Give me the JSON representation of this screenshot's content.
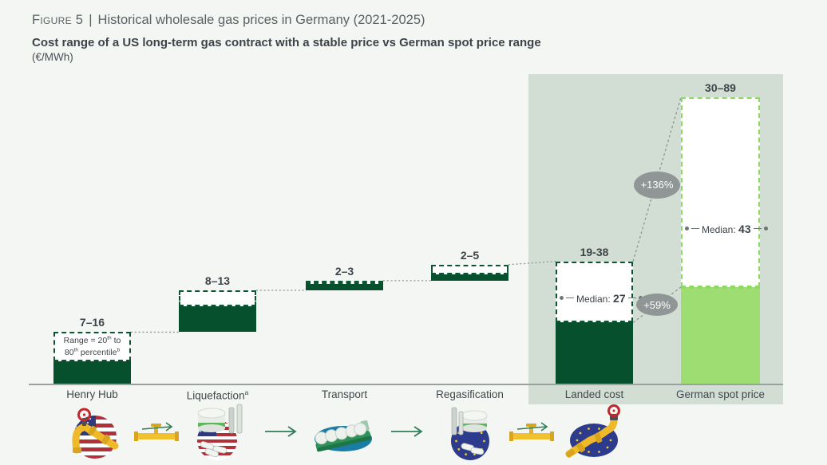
{
  "header": {
    "figure_label": "Figure 5",
    "separator": "|",
    "title": "Historical wholesale gas prices in Germany (2021-2025)",
    "subtitle": "Cost range of a US long-term gas contract with a stable price vs German spot price range",
    "units": "(€/MWh)"
  },
  "chart_data": {
    "type": "bar",
    "subtype": "floating-range-waterfall",
    "title": "Cost range of a US long-term gas contract with a stable price vs German spot price range",
    "unit": "€/MWh",
    "grid": false,
    "legend_position": "none",
    "categories": [
      "Henry Hub",
      "Liquefaction",
      "Transport",
      "Regasification",
      "Landed cost",
      "German spot price"
    ],
    "bars": [
      {
        "name": "Henry Hub",
        "sup": "",
        "range_label": "7–16",
        "min": 7,
        "max": 16,
        "base": 0,
        "style": "dark-green"
      },
      {
        "name": "Liquefaction",
        "sup": "a",
        "range_label": "8–13",
        "min": 8,
        "max": 13,
        "base": 16,
        "style": "dark-green"
      },
      {
        "name": "Transport",
        "sup": "",
        "range_label": "2–3",
        "min": 2,
        "max": 3,
        "base": 29,
        "style": "dark-green"
      },
      {
        "name": "Regasification",
        "sup": "",
        "range_label": "2–5",
        "min": 2,
        "max": 5,
        "base": 32,
        "style": "dark-green"
      },
      {
        "name": "Landed cost",
        "sup": "",
        "range_label": "19-38",
        "min": 19,
        "max": 38,
        "base": 0,
        "style": "dark-green",
        "median": 27,
        "median_label": "Median:",
        "median_value": "27"
      },
      {
        "name": "German spot price",
        "sup": "",
        "range_label": "30–89",
        "min": 30,
        "max": 89,
        "base": 0,
        "style": "light-green",
        "median": 43,
        "median_label": "Median:",
        "median_value": "43"
      }
    ],
    "range_note": {
      "p1": "Range = 20",
      "s1": "th",
      "p2": " to",
      "p3": "80",
      "s2": "th",
      "p4": " percentile",
      "s3": "b"
    },
    "badges": {
      "upper": "+136%",
      "lower": "+59%"
    }
  },
  "colors": {
    "dark_green": "#07502d",
    "dark_green_border": "#0d5531",
    "light_green": "#9edd71",
    "light_green_border": "#8ed961",
    "panel_background": "#d2ded4",
    "page_background": "#f3f6f2",
    "badge_gray": "#909595",
    "text_dark": "#3d4449",
    "text_gray": "#5a6165",
    "axis_line": "#9aa19f",
    "connector": "#8f9595"
  },
  "icons": [
    "us-henry-hub-pipeline-icon",
    "pipe-valve-arrow-icon",
    "us-liquefaction-plant-icon",
    "arrow-right-icon",
    "lng-carrier-ship-icon",
    "arrow-right-icon",
    "eu-regasification-terminal-icon",
    "pipe-valve-arrow-icon",
    "eu-pipeline-valve-icon"
  ]
}
